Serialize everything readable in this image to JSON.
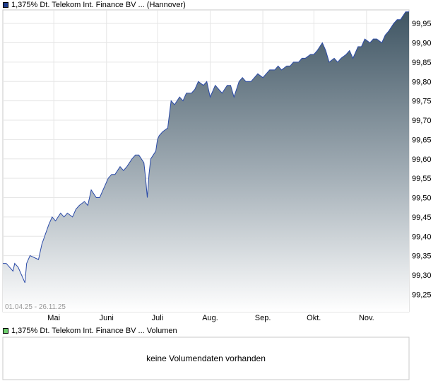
{
  "legend": {
    "price_label": "1,375% Dt. Telekom Int. Finance BV ... (Hannover)",
    "price_color": "#1f3d8c",
    "volume_label": "1,375% Dt. Telekom Int. Finance BV ... Volumen",
    "volume_color": "#6dcf6d"
  },
  "date_range": "01.04.25 - 26.11.25",
  "volume_message": "keine Volumendaten vorhanden",
  "chart_data": {
    "type": "area",
    "title": "1,375% Dt. Telekom Int. Finance BV ... (Hannover)",
    "ylim": [
      99.205,
      99.985
    ],
    "y_ticks": [
      "99,25",
      "99,30",
      "99,35",
      "99,40",
      "99,45",
      "99,50",
      "99,55",
      "99,60",
      "99,65",
      "99,70",
      "99,75",
      "99,80",
      "99,85",
      "99,90",
      "99,95"
    ],
    "y_tick_values": [
      99.25,
      99.3,
      99.35,
      99.4,
      99.45,
      99.5,
      99.55,
      99.6,
      99.65,
      99.7,
      99.75,
      99.8,
      99.85,
      99.9,
      99.95
    ],
    "x_range": [
      "2025-04-01",
      "2025-11-26"
    ],
    "x_ticks": [
      {
        "label": "Mai",
        "date": "2025-05-01"
      },
      {
        "label": "Juni",
        "date": "2025-06-01"
      },
      {
        "label": "Juli",
        "date": "2025-07-01"
      },
      {
        "label": "Aug.",
        "date": "2025-08-01"
      },
      {
        "label": "Sep.",
        "date": "2025-09-01"
      },
      {
        "label": "Okt.",
        "date": "2025-10-01"
      },
      {
        "label": "Nov.",
        "date": "2025-11-01"
      }
    ],
    "grid": true,
    "series": [
      {
        "x": [
          "2025-04-01",
          "2025-04-03",
          "2025-04-07",
          "2025-04-08",
          "2025-04-10",
          "2025-04-14",
          "2025-04-15",
          "2025-04-17",
          "2025-04-22",
          "2025-04-24",
          "2025-04-28",
          "2025-04-30",
          "2025-05-02",
          "2025-05-05",
          "2025-05-07",
          "2025-05-09",
          "2025-05-12",
          "2025-05-14",
          "2025-05-16",
          "2025-05-19",
          "2025-05-21",
          "2025-05-23",
          "2025-05-26",
          "2025-05-28",
          "2025-05-30",
          "2025-06-02",
          "2025-06-04",
          "2025-06-06",
          "2025-06-09",
          "2025-06-11",
          "2025-06-13",
          "2025-06-16",
          "2025-06-18",
          "2025-06-20",
          "2025-06-23",
          "2025-06-24",
          "2025-06-25",
          "2025-06-26",
          "2025-06-27",
          "2025-06-30",
          "2025-07-01",
          "2025-07-02",
          "2025-07-04",
          "2025-07-07",
          "2025-07-09",
          "2025-07-11",
          "2025-07-14",
          "2025-07-16",
          "2025-07-18",
          "2025-07-21",
          "2025-07-23",
          "2025-07-25",
          "2025-07-28",
          "2025-07-30",
          "2025-08-01",
          "2025-08-04",
          "2025-08-06",
          "2025-08-08",
          "2025-08-11",
          "2025-08-13",
          "2025-08-15",
          "2025-08-18",
          "2025-08-20",
          "2025-08-22",
          "2025-08-25",
          "2025-08-27",
          "2025-08-29",
          "2025-09-01",
          "2025-09-03",
          "2025-09-05",
          "2025-09-08",
          "2025-09-10",
          "2025-09-12",
          "2025-09-15",
          "2025-09-17",
          "2025-09-19",
          "2025-09-22",
          "2025-09-24",
          "2025-09-26",
          "2025-09-29",
          "2025-10-01",
          "2025-10-03",
          "2025-10-06",
          "2025-10-08",
          "2025-10-10",
          "2025-10-13",
          "2025-10-15",
          "2025-10-17",
          "2025-10-20",
          "2025-10-22",
          "2025-10-24",
          "2025-10-27",
          "2025-10-29",
          "2025-10-31",
          "2025-11-03",
          "2025-11-05",
          "2025-11-07",
          "2025-11-10",
          "2025-11-12",
          "2025-11-14",
          "2025-11-17",
          "2025-11-19",
          "2025-11-21",
          "2025-11-24",
          "2025-11-26"
        ],
        "y": [
          99.33,
          99.33,
          99.31,
          99.33,
          99.32,
          99.28,
          99.33,
          99.35,
          99.34,
          99.38,
          99.43,
          99.45,
          99.44,
          99.46,
          99.45,
          99.46,
          99.45,
          99.47,
          99.48,
          99.49,
          99.48,
          99.52,
          99.5,
          99.5,
          99.52,
          99.55,
          99.56,
          99.56,
          99.58,
          99.57,
          99.58,
          99.6,
          99.61,
          99.61,
          99.59,
          99.55,
          99.5,
          99.56,
          99.6,
          99.62,
          99.65,
          99.66,
          99.67,
          99.68,
          99.75,
          99.74,
          99.76,
          99.75,
          99.77,
          99.77,
          99.78,
          99.8,
          99.79,
          99.8,
          99.76,
          99.79,
          99.78,
          99.77,
          99.79,
          99.79,
          99.76,
          99.8,
          99.81,
          99.8,
          99.8,
          99.81,
          99.82,
          99.81,
          99.82,
          99.83,
          99.83,
          99.84,
          99.83,
          99.84,
          99.84,
          99.85,
          99.85,
          99.86,
          99.86,
          99.87,
          99.87,
          99.88,
          99.9,
          99.88,
          99.85,
          99.86,
          99.85,
          99.86,
          99.87,
          99.88,
          99.86,
          99.89,
          99.89,
          99.91,
          99.9,
          99.91,
          99.91,
          99.9,
          99.92,
          99.93,
          99.95,
          99.96,
          99.96,
          99.98,
          99.98
        ]
      }
    ]
  }
}
